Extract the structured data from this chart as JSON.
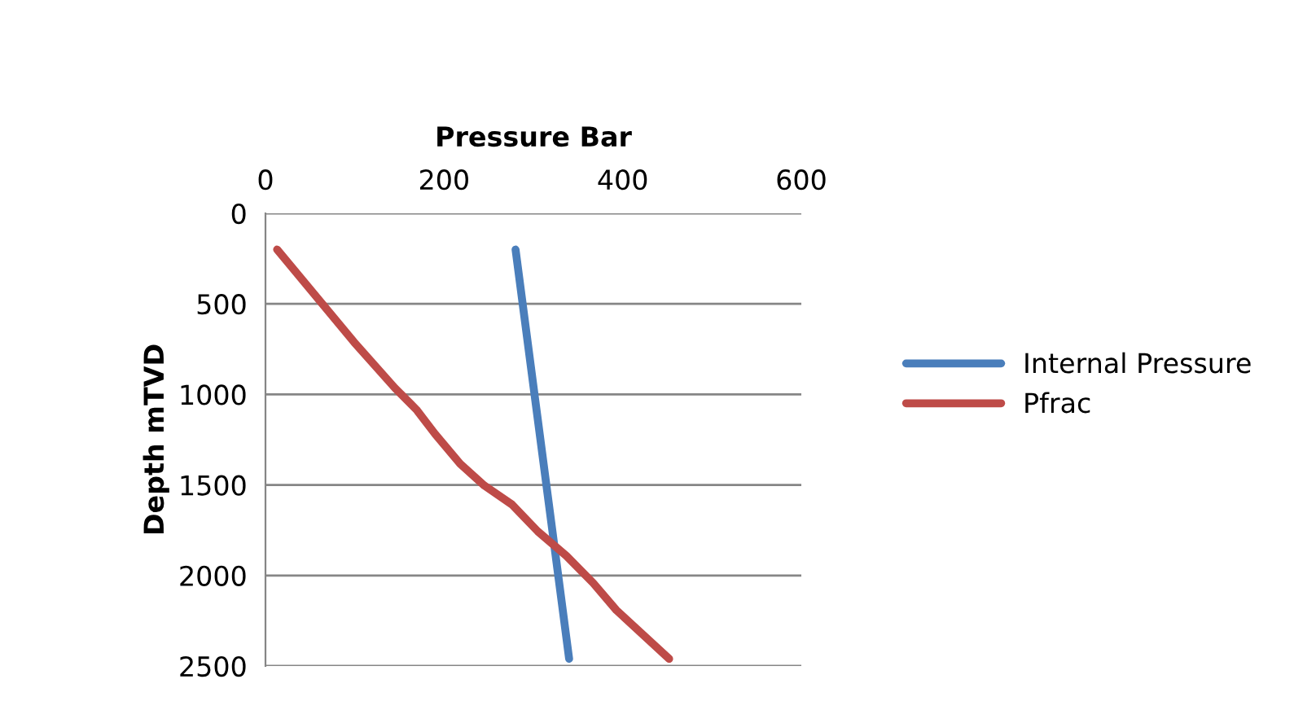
{
  "chart_data": {
    "type": "line",
    "xlabel": "Pressure Bar",
    "ylabel": "Depth mTVD",
    "xlim": [
      0,
      600
    ],
    "xticks": [
      0,
      200,
      400,
      600
    ],
    "ylim": [
      2500,
      0
    ],
    "yticks": [
      0,
      500,
      1000,
      1500,
      2000,
      2500
    ],
    "grid": "y",
    "legend": "right",
    "marker": "none",
    "line_style": "solid",
    "series": [
      {
        "name": "Internal Pressure",
        "color": "#4a7ebb",
        "x": [
          280,
          340
        ],
        "values": [
          200,
          2460
        ]
      },
      {
        "name": "Pfrac",
        "color": "#be4b48",
        "x": [
          13,
          56,
          99,
          145,
          169,
          190,
          218,
          245,
          276,
          305,
          337,
          367,
          393,
          452
        ],
        "values": [
          200,
          455,
          710,
          965,
          1084,
          1219,
          1383,
          1503,
          1608,
          1757,
          1892,
          2042,
          2192,
          2460
        ]
      }
    ]
  }
}
